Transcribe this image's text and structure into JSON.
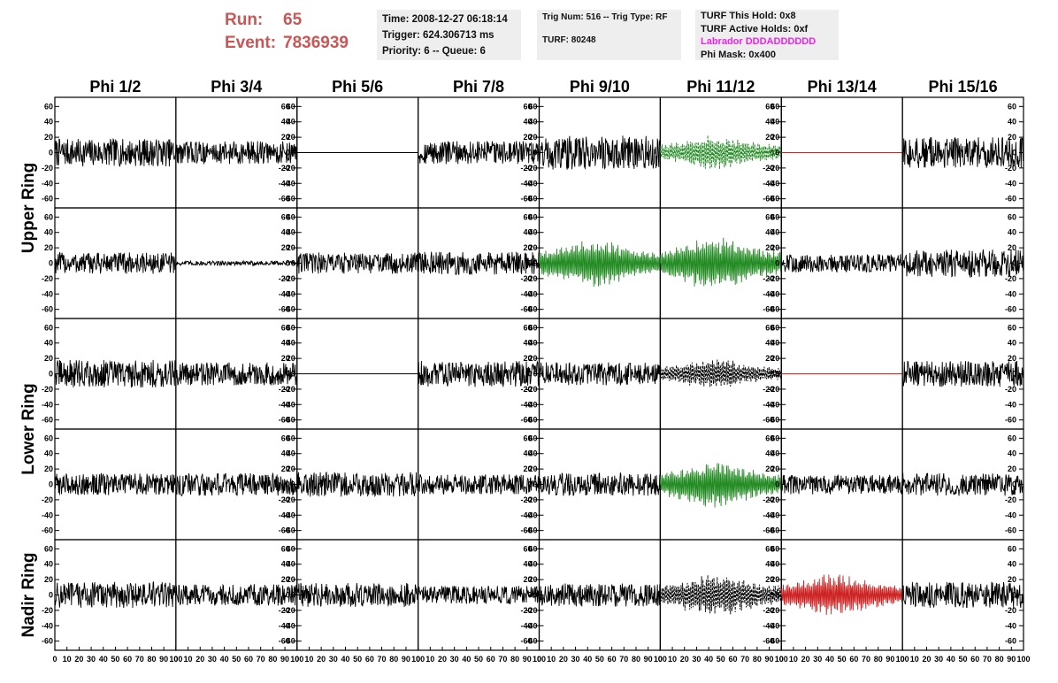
{
  "header": {
    "run_label": "Run:",
    "run_value": "65",
    "event_label": "Event:",
    "event_value": "7836939",
    "time": "Time: 2008-12-27 06:18:14",
    "trigger": "Trigger: 624.306713 ms",
    "priority": "Priority: 6 -- Queue: 6",
    "trig_num": "Trig Num: 516 -- Trig Type: RF",
    "turf": "TURF: 80248",
    "turf_this_hold": "TURF This Hold: 0x8",
    "turf_active_holds": "TURF Active Holds: 0xf",
    "labrador": "Labrador DDDADDDDDD",
    "phi_mask": "Phi Mask: 0x400"
  },
  "colors": {
    "run_text": "#cc5555",
    "labrador_text": "#ee22ee",
    "trace_default": "#000000",
    "trace_green": "#228b22",
    "trace_red": "#cc2222"
  },
  "chart_data": {
    "type": "line",
    "columns": [
      "Phi 1/2",
      "Phi 3/4",
      "Phi 5/6",
      "Phi 7/8",
      "Phi 9/10",
      "Phi 11/12",
      "Phi 13/14",
      "Phi 15/16"
    ],
    "rows": [
      "Upper Ring",
      "",
      "Lower Ring",
      "",
      "Nadir Ring"
    ],
    "row_labels": [
      {
        "text": "Upper Ring",
        "rows": [
          0,
          1
        ]
      },
      {
        "text": "Lower Ring",
        "rows": [
          2,
          3
        ]
      },
      {
        "text": "Nadir Ring",
        "rows": [
          4,
          4
        ]
      }
    ],
    "xlim": [
      0,
      100
    ],
    "ylim": [
      -65,
      65
    ],
    "y_ticks": [
      -60,
      -40,
      -20,
      0,
      20,
      40,
      60
    ],
    "x_ticks": [
      0,
      10,
      20,
      30,
      40,
      50,
      60,
      70,
      80,
      90,
      100
    ],
    "x_tick_labels": [
      "0",
      "10",
      "20",
      "30",
      "40",
      "50",
      "60",
      "70",
      "80",
      "90",
      "100"
    ],
    "panels": [
      [
        {
          "style": "solid",
          "color": "#000000",
          "amplitude": 18
        },
        {
          "style": "solid",
          "color": "#000000",
          "amplitude": 15
        },
        {
          "style": "flat",
          "color": "#000000",
          "amplitude": 0
        },
        {
          "style": "solid",
          "color": "#000000",
          "amplitude": 15
        },
        {
          "style": "solid",
          "color": "#000000",
          "amplitude": 22
        },
        {
          "style": "dashed",
          "color": "#228b22",
          "amplitude": 18
        },
        {
          "style": "flat",
          "color": "#cc2222",
          "amplitude": 0
        },
        {
          "style": "solid",
          "color": "#000000",
          "amplitude": 20
        }
      ],
      [
        {
          "style": "solid",
          "color": "#000000",
          "amplitude": 14
        },
        {
          "style": "solid",
          "color": "#000000",
          "amplitude": 3
        },
        {
          "style": "solid",
          "color": "#000000",
          "amplitude": 14
        },
        {
          "style": "solid",
          "color": "#000000",
          "amplitude": 15
        },
        {
          "style": "solid",
          "color": "#228b22",
          "amplitude": 25
        },
        {
          "style": "solid",
          "color": "#228b22",
          "amplitude": 28
        },
        {
          "style": "solid",
          "color": "#000000",
          "amplitude": 12
        },
        {
          "style": "solid",
          "color": "#000000",
          "amplitude": 18
        }
      ],
      [
        {
          "style": "solid",
          "color": "#000000",
          "amplitude": 18
        },
        {
          "style": "solid",
          "color": "#000000",
          "amplitude": 15
        },
        {
          "style": "flat",
          "color": "#000000",
          "amplitude": 0
        },
        {
          "style": "solid",
          "color": "#000000",
          "amplitude": 17
        },
        {
          "style": "solid",
          "color": "#000000",
          "amplitude": 15
        },
        {
          "style": "dashed",
          "color": "#000000",
          "amplitude": 15
        },
        {
          "style": "flat",
          "color": "#cc2222",
          "amplitude": 0
        },
        {
          "style": "solid",
          "color": "#000000",
          "amplitude": 17
        }
      ],
      [
        {
          "style": "solid",
          "color": "#000000",
          "amplitude": 14
        },
        {
          "style": "solid",
          "color": "#000000",
          "amplitude": 15
        },
        {
          "style": "solid",
          "color": "#000000",
          "amplitude": 16
        },
        {
          "style": "solid",
          "color": "#000000",
          "amplitude": 13
        },
        {
          "style": "solid",
          "color": "#000000",
          "amplitude": 15
        },
        {
          "style": "solid",
          "color": "#228b22",
          "amplitude": 24
        },
        {
          "style": "solid",
          "color": "#000000",
          "amplitude": 13
        },
        {
          "style": "solid",
          "color": "#000000",
          "amplitude": 15
        }
      ],
      [
        {
          "style": "solid",
          "color": "#000000",
          "amplitude": 17
        },
        {
          "style": "solid",
          "color": "#000000",
          "amplitude": 14
        },
        {
          "style": "solid",
          "color": "#000000",
          "amplitude": 16
        },
        {
          "style": "solid",
          "color": "#000000",
          "amplitude": 12
        },
        {
          "style": "solid",
          "color": "#000000",
          "amplitude": 15
        },
        {
          "style": "dashed",
          "color": "#000000",
          "amplitude": 22
        },
        {
          "style": "solid",
          "color": "#cc2222",
          "amplitude": 22
        },
        {
          "style": "solid",
          "color": "#000000",
          "amplitude": 17
        }
      ]
    ]
  }
}
